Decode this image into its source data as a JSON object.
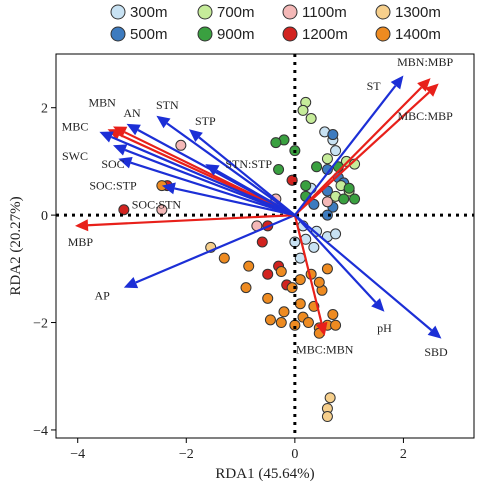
{
  "chart_data": {
    "type": "scatter",
    "title": "",
    "xlabel": "RDA1 (45.64%)",
    "ylabel": "RDA2 (20.27%)",
    "xlim": [
      -4.4,
      3.3
    ],
    "ylim": [
      -4.15,
      3.0
    ],
    "xticks": [
      -4,
      -2,
      0,
      2
    ],
    "yticks": [
      -4,
      -2,
      0,
      2
    ],
    "reference_lines": {
      "x": 0,
      "y": 0,
      "style": "dotted"
    },
    "legend": {
      "position": "top",
      "title": ""
    },
    "series": [
      {
        "name": "300m",
        "color": "#c8e2f3",
        "points": [
          [
            0.55,
            1.55
          ],
          [
            0.7,
            1.4
          ],
          [
            0.75,
            1.2
          ],
          [
            0.3,
            0.5
          ],
          [
            0.0,
            -0.5
          ],
          [
            0.1,
            -0.8
          ],
          [
            0.2,
            -0.45
          ],
          [
            0.35,
            -0.6
          ],
          [
            0.4,
            -0.3
          ],
          [
            0.6,
            -0.4
          ],
          [
            0.75,
            -0.35
          ],
          [
            0.15,
            -0.2
          ]
        ]
      },
      {
        "name": "500m",
        "color": "#3d7bbf",
        "points": [
          [
            0.7,
            1.5
          ],
          [
            0.6,
            0.85
          ],
          [
            0.6,
            0.45
          ],
          [
            0.7,
            0.15
          ],
          [
            0.8,
            0.7
          ],
          [
            0.9,
            0.6
          ],
          [
            0.35,
            0.2
          ],
          [
            0.6,
            0.0
          ]
        ]
      },
      {
        "name": "700m",
        "color": "#c6ec9a",
        "points": [
          [
            0.2,
            2.1
          ],
          [
            0.15,
            1.95
          ],
          [
            0.3,
            1.8
          ],
          [
            0.6,
            1.05
          ],
          [
            0.95,
            1.0
          ],
          [
            1.1,
            0.95
          ],
          [
            0.85,
            0.55
          ],
          [
            0.75,
            0.35
          ],
          [
            1.0,
            0.45
          ]
        ]
      },
      {
        "name": "900m",
        "color": "#3aa040",
        "points": [
          [
            -0.2,
            1.4
          ],
          [
            -0.35,
            1.35
          ],
          [
            0.0,
            1.2
          ],
          [
            0.4,
            0.9
          ],
          [
            0.8,
            0.9
          ],
          [
            1.0,
            0.5
          ],
          [
            1.1,
            0.3
          ],
          [
            0.9,
            0.3
          ],
          [
            -0.3,
            0.85
          ],
          [
            0.2,
            0.55
          ],
          [
            0.2,
            0.35
          ]
        ]
      },
      {
        "name": "1100m",
        "color": "#f4b8b7",
        "points": [
          [
            -2.1,
            1.3
          ],
          [
            -2.45,
            0.1
          ],
          [
            -0.7,
            -0.2
          ],
          [
            -0.35,
            0.3
          ],
          [
            -0.05,
            0.65
          ],
          [
            0.6,
            0.25
          ]
        ]
      },
      {
        "name": "1200m",
        "color": "#d2231f",
        "points": [
          [
            -3.15,
            0.1
          ],
          [
            -2.35,
            0.55
          ],
          [
            -0.05,
            0.65
          ],
          [
            -0.5,
            -0.2
          ],
          [
            -0.6,
            -0.5
          ],
          [
            -0.3,
            -0.95
          ],
          [
            -0.5,
            -1.1
          ],
          [
            -0.15,
            -1.3
          ]
        ]
      },
      {
        "name": "1300m",
        "color": "#f6cf8c",
        "points": [
          [
            -1.55,
            -0.6
          ],
          [
            0.65,
            -3.4
          ],
          [
            0.6,
            -3.6
          ],
          [
            0.6,
            -3.75
          ]
        ]
      },
      {
        "name": "1400m",
        "color": "#ee8b21",
        "points": [
          [
            -2.45,
            0.55
          ],
          [
            -1.3,
            -0.8
          ],
          [
            -0.85,
            -0.95
          ],
          [
            -0.25,
            -1.05
          ],
          [
            -0.9,
            -1.35
          ],
          [
            -0.5,
            -1.55
          ],
          [
            -0.2,
            -1.8
          ],
          [
            0.1,
            -1.65
          ],
          [
            -0.05,
            -1.35
          ],
          [
            -0.45,
            -1.95
          ],
          [
            0.15,
            -1.9
          ],
          [
            -0.25,
            -2.0
          ],
          [
            0.0,
            -2.05
          ],
          [
            0.25,
            -2.0
          ],
          [
            0.35,
            -1.7
          ],
          [
            0.5,
            -1.4
          ],
          [
            0.45,
            -1.25
          ],
          [
            0.6,
            -1.0
          ],
          [
            0.45,
            -2.1
          ],
          [
            0.6,
            -2.05
          ],
          [
            0.7,
            -1.85
          ],
          [
            0.75,
            -2.05
          ],
          [
            0.3,
            -1.1
          ],
          [
            0.1,
            -1.2
          ],
          [
            0.45,
            -2.2
          ]
        ]
      }
    ],
    "arrows": [
      {
        "label": "MBN:MBP",
        "color": "#e8201a",
        "x": 2.5,
        "y": 2.55,
        "lx": 2.4,
        "ly": 2.85
      },
      {
        "label": "MBC:MBP",
        "color": "#e8201a",
        "x": 2.65,
        "y": 2.45,
        "lx": 2.4,
        "ly": 1.85
      },
      {
        "label": "ST",
        "color": "#1c2fd6",
        "x": 2.0,
        "y": 2.6,
        "lx": 1.45,
        "ly": 2.4
      },
      {
        "label": "MBC:MBN",
        "color": "#e8201a",
        "x": 0.55,
        "y": -2.25,
        "lx": 0.55,
        "ly": -2.5
      },
      {
        "label": "pH",
        "color": "#1c2fd6",
        "x": 1.65,
        "y": -1.8,
        "lx": 1.65,
        "ly": -2.1
      },
      {
        "label": "SBD",
        "color": "#1c2fd6",
        "x": 2.7,
        "y": -2.3,
        "lx": 2.6,
        "ly": -2.55
      },
      {
        "label": "AP",
        "color": "#1c2fd6",
        "x": -3.15,
        "y": -1.35,
        "lx": -3.55,
        "ly": -1.5
      },
      {
        "label": "MBP",
        "color": "#e8201a",
        "x": -4.05,
        "y": -0.2,
        "lx": -3.95,
        "ly": -0.5
      },
      {
        "label": "MBC",
        "color": "#e8201a",
        "x": -3.35,
        "y": 1.65,
        "lx": -4.05,
        "ly": 1.65
      },
      {
        "label": "MBN",
        "color": "#e8201a",
        "x": -3.45,
        "y": 1.6,
        "lx": -3.55,
        "ly": 2.1
      },
      {
        "label": "SWC",
        "color": "#1c2fd6",
        "x": -3.6,
        "y": 1.55,
        "lx": -4.05,
        "ly": 1.1
      },
      {
        "label": "AN",
        "color": "#1c2fd6",
        "x": -3.1,
        "y": 1.7,
        "lx": -3.0,
        "ly": 1.9
      },
      {
        "label": "STN",
        "color": "#1c2fd6",
        "x": -2.55,
        "y": 1.85,
        "lx": -2.35,
        "ly": 2.05
      },
      {
        "label": "STP",
        "color": "#1c2fd6",
        "x": -1.95,
        "y": 1.6,
        "lx": -1.65,
        "ly": 1.75
      },
      {
        "label": "SOC",
        "color": "#1c2fd6",
        "x": -3.35,
        "y": 1.3,
        "lx": -3.35,
        "ly": 0.95
      },
      {
        "label": "SOC:STP",
        "color": "#1c2fd6",
        "x": -3.25,
        "y": 1.05,
        "lx": -3.35,
        "ly": 0.55
      },
      {
        "label": "STN:STP",
        "color": "#1c2fd6",
        "x": -1.65,
        "y": 0.95,
        "lx": -0.85,
        "ly": 0.95
      },
      {
        "label": "SOC:STN",
        "color": "#1c2fd6",
        "x": -2.45,
        "y": 0.55,
        "lx": -2.55,
        "ly": 0.2
      }
    ]
  }
}
